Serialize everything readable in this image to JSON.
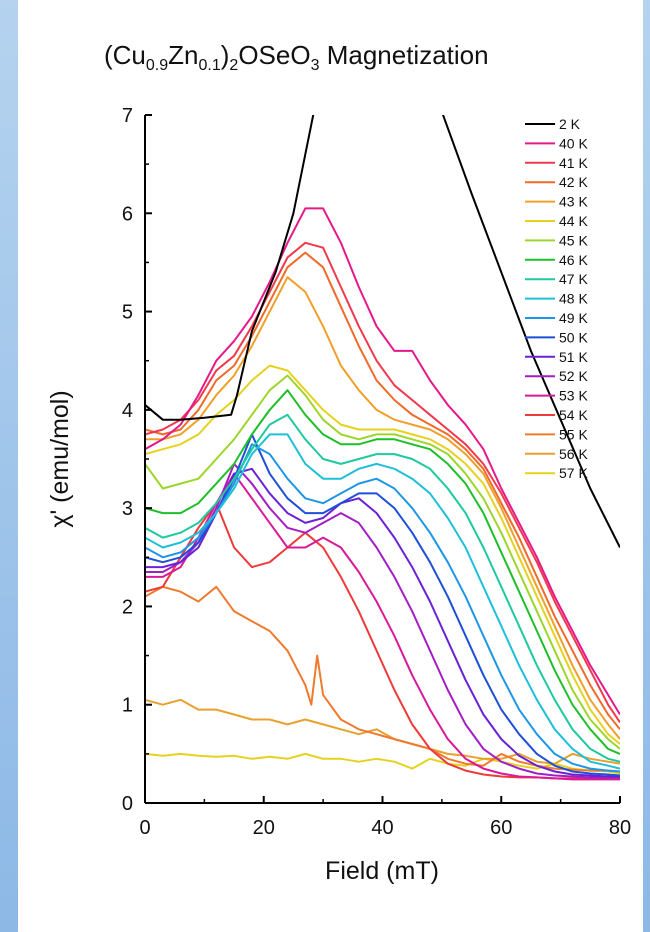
{
  "chart_data": {
    "type": "line",
    "title": {
      "base1": "(Cu",
      "sub1": "0.9",
      "base2": "Zn",
      "sub2": "0.1",
      "base3": ")",
      "sub3": "2",
      "base4": "OSeO",
      "sub4": "3",
      "base5": " Magnetization"
    },
    "xlabel": "Field (mT)",
    "ylabel": "χ' (emu/mol)",
    "xlim": [
      0,
      80
    ],
    "ylim": [
      0,
      7
    ],
    "xticks": [
      0,
      20,
      40,
      60,
      80
    ],
    "yticks": [
      0,
      1,
      2,
      3,
      4,
      5,
      6,
      7
    ],
    "grid": false,
    "legend_position": "top-right",
    "series": [
      {
        "name": "2 K",
        "color": "#000000",
        "x": [
          0,
          3,
          6,
          10,
          14.5,
          15.5,
          18,
          22,
          25,
          27,
          29,
          31
        ],
        "y": [
          4.05,
          3.9,
          3.9,
          3.92,
          3.95,
          4.15,
          4.8,
          5.4,
          6.0,
          6.6,
          7.2,
          7.8
        ]
      },
      {
        "name": "40 K",
        "color": "#e6198a",
        "x": [
          0,
          3,
          6,
          9,
          12,
          15,
          18,
          21,
          24,
          27,
          30,
          33,
          36,
          39,
          42,
          45,
          48,
          51,
          54,
          57,
          60,
          63,
          66,
          69,
          72,
          75,
          78,
          80
        ],
        "y": [
          3.6,
          3.7,
          3.85,
          4.15,
          4.5,
          4.7,
          4.95,
          5.3,
          5.7,
          6.05,
          6.05,
          5.7,
          5.25,
          4.85,
          4.6,
          4.6,
          4.3,
          4.05,
          3.85,
          3.6,
          3.2,
          2.85,
          2.5,
          2.1,
          1.75,
          1.4,
          1.1,
          0.9
        ]
      },
      {
        "name": "41 K",
        "color": "#ef3a4e",
        "x": [
          0,
          3,
          6,
          9,
          12,
          15,
          18,
          21,
          24,
          27,
          30,
          33,
          36,
          39,
          42,
          45,
          48,
          51,
          54,
          57,
          60,
          63,
          66,
          69,
          72,
          75,
          78,
          80
        ],
        "y": [
          3.75,
          3.8,
          3.9,
          4.1,
          4.4,
          4.55,
          4.85,
          5.2,
          5.55,
          5.7,
          5.65,
          5.25,
          4.85,
          4.5,
          4.25,
          4.1,
          3.95,
          3.8,
          3.65,
          3.45,
          3.15,
          2.8,
          2.45,
          2.05,
          1.7,
          1.35,
          1.0,
          0.82
        ]
      },
      {
        "name": "42 K",
        "color": "#f06a2a",
        "x": [
          0,
          3,
          6,
          9,
          12,
          15,
          18,
          21,
          24,
          27,
          30,
          33,
          36,
          39,
          42,
          45,
          48,
          51,
          54,
          57,
          60,
          63,
          66,
          69,
          72,
          75,
          78,
          80
        ],
        "y": [
          3.8,
          3.75,
          3.8,
          4.0,
          4.3,
          4.45,
          4.75,
          5.1,
          5.45,
          5.6,
          5.45,
          5.05,
          4.65,
          4.3,
          4.1,
          3.95,
          3.85,
          3.75,
          3.6,
          3.4,
          3.05,
          2.7,
          2.3,
          1.9,
          1.55,
          1.2,
          0.9,
          0.75
        ]
      },
      {
        "name": "43 K",
        "color": "#f0a02a",
        "x": [
          0,
          3,
          6,
          9,
          12,
          15,
          18,
          21,
          24,
          27,
          30,
          33,
          36,
          39,
          42,
          45,
          48,
          51,
          54,
          57,
          60,
          63,
          66,
          69,
          72,
          75,
          78,
          80
        ],
        "y": [
          3.7,
          3.7,
          3.75,
          3.9,
          4.15,
          4.35,
          4.65,
          5.0,
          5.35,
          5.2,
          4.85,
          4.45,
          4.2,
          4.0,
          3.9,
          3.85,
          3.8,
          3.7,
          3.55,
          3.35,
          3.0,
          2.6,
          2.2,
          1.8,
          1.4,
          1.05,
          0.8,
          0.65
        ]
      },
      {
        "name": "44 K",
        "color": "#e6d21e",
        "x": [
          0,
          3,
          6,
          9,
          12,
          15,
          18,
          21,
          24,
          27,
          30,
          33,
          36,
          39,
          42,
          45,
          48,
          51,
          54,
          57,
          60,
          63,
          66,
          69,
          72,
          75,
          78,
          80
        ],
        "y": [
          3.55,
          3.6,
          3.65,
          3.75,
          3.95,
          4.1,
          4.3,
          4.45,
          4.4,
          4.2,
          4.0,
          3.85,
          3.8,
          3.8,
          3.8,
          3.75,
          3.7,
          3.6,
          3.45,
          3.25,
          2.9,
          2.5,
          2.1,
          1.7,
          1.3,
          0.95,
          0.7,
          0.6
        ]
      },
      {
        "name": "45 K",
        "color": "#9dd62a",
        "x": [
          0,
          3,
          6,
          9,
          12,
          15,
          18,
          21,
          24,
          27,
          30,
          33,
          36,
          39,
          42,
          45,
          48,
          51,
          54,
          57,
          60,
          63,
          66,
          69,
          72,
          75,
          78,
          80
        ],
        "y": [
          3.45,
          3.2,
          3.25,
          3.3,
          3.5,
          3.7,
          3.95,
          4.2,
          4.35,
          4.15,
          3.9,
          3.75,
          3.7,
          3.75,
          3.75,
          3.7,
          3.65,
          3.55,
          3.35,
          3.1,
          2.75,
          2.35,
          1.95,
          1.55,
          1.15,
          0.85,
          0.65,
          0.55
        ]
      },
      {
        "name": "46 K",
        "color": "#1fbf2a",
        "x": [
          0,
          3,
          6,
          9,
          12,
          15,
          18,
          21,
          24,
          27,
          30,
          33,
          36,
          39,
          42,
          45,
          48,
          51,
          54,
          57,
          60,
          63,
          66,
          69,
          72,
          75,
          78,
          80
        ],
        "y": [
          3.0,
          2.95,
          2.95,
          3.05,
          3.25,
          3.45,
          3.75,
          4.0,
          4.2,
          3.95,
          3.75,
          3.65,
          3.65,
          3.7,
          3.7,
          3.65,
          3.6,
          3.45,
          3.25,
          2.95,
          2.55,
          2.15,
          1.75,
          1.35,
          1.0,
          0.75,
          0.55,
          0.5
        ]
      },
      {
        "name": "47 K",
        "color": "#1fc9a0",
        "x": [
          0,
          3,
          6,
          9,
          12,
          15,
          18,
          21,
          24,
          27,
          30,
          33,
          36,
          39,
          42,
          45,
          48,
          51,
          54,
          57,
          60,
          63,
          66,
          69,
          72,
          75,
          78,
          80
        ],
        "y": [
          2.8,
          2.7,
          2.75,
          2.85,
          3.05,
          3.3,
          3.6,
          3.85,
          3.95,
          3.7,
          3.5,
          3.45,
          3.5,
          3.55,
          3.55,
          3.5,
          3.4,
          3.2,
          2.95,
          2.6,
          2.2,
          1.8,
          1.4,
          1.05,
          0.75,
          0.55,
          0.45,
          0.42
        ]
      },
      {
        "name": "48 K",
        "color": "#1ec0d8",
        "x": [
          0,
          3,
          6,
          9,
          12,
          15,
          18,
          21,
          24,
          27,
          30,
          33,
          36,
          39,
          42,
          45,
          48,
          51,
          54,
          57,
          60,
          63,
          66,
          69,
          72,
          75,
          78,
          80
        ],
        "y": [
          2.7,
          2.6,
          2.65,
          2.75,
          2.95,
          3.2,
          3.55,
          3.75,
          3.75,
          3.45,
          3.3,
          3.3,
          3.4,
          3.45,
          3.4,
          3.3,
          3.15,
          2.9,
          2.6,
          2.2,
          1.8,
          1.4,
          1.05,
          0.75,
          0.55,
          0.42,
          0.38,
          0.35
        ]
      },
      {
        "name": "49 K",
        "color": "#1e96e8",
        "x": [
          0,
          3,
          6,
          9,
          12,
          15,
          18,
          21,
          24,
          27,
          30,
          33,
          36,
          39,
          42,
          45,
          48,
          51,
          54,
          57,
          60,
          63,
          66,
          69,
          72,
          75,
          78,
          80
        ],
        "y": [
          2.6,
          2.5,
          2.55,
          2.7,
          2.95,
          3.25,
          3.65,
          3.55,
          3.3,
          3.1,
          3.05,
          3.15,
          3.25,
          3.3,
          3.2,
          3.0,
          2.75,
          2.45,
          2.1,
          1.7,
          1.3,
          0.95,
          0.7,
          0.5,
          0.4,
          0.35,
          0.33,
          0.32
        ]
      },
      {
        "name": "50 K",
        "color": "#1e4fd6",
        "x": [
          0,
          3,
          6,
          9,
          12,
          15,
          18,
          21,
          24,
          27,
          30,
          33,
          36,
          39,
          42,
          45,
          48,
          51,
          54,
          57,
          60,
          63,
          66,
          69,
          72,
          75,
          78,
          80
        ],
        "y": [
          2.5,
          2.45,
          2.5,
          2.65,
          2.95,
          3.3,
          3.75,
          3.35,
          3.1,
          2.95,
          2.95,
          3.05,
          3.15,
          3.15,
          3.0,
          2.75,
          2.45,
          2.1,
          1.7,
          1.3,
          0.95,
          0.7,
          0.5,
          0.38,
          0.32,
          0.3,
          0.29,
          0.28
        ]
      },
      {
        "name": "51 K",
        "color": "#6a22d6",
        "x": [
          0,
          3,
          6,
          9,
          12,
          15,
          18,
          21,
          24,
          27,
          30,
          33,
          36,
          39,
          42,
          45,
          48,
          51,
          54,
          57,
          60,
          63,
          66,
          69,
          72,
          75,
          78,
          80
        ],
        "y": [
          2.4,
          2.4,
          2.45,
          2.6,
          2.95,
          3.35,
          3.4,
          3.15,
          2.95,
          2.85,
          2.9,
          3.05,
          3.1,
          2.95,
          2.7,
          2.4,
          2.05,
          1.65,
          1.25,
          0.9,
          0.65,
          0.48,
          0.38,
          0.32,
          0.29,
          0.28,
          0.27,
          0.27
        ]
      },
      {
        "name": "52 K",
        "color": "#a31fc4",
        "x": [
          0,
          3,
          6,
          9,
          12,
          15,
          18,
          21,
          24,
          27,
          30,
          33,
          36,
          39,
          42,
          45,
          48,
          51,
          54,
          57,
          60,
          63,
          66,
          69,
          72,
          75,
          78,
          80
        ],
        "y": [
          2.35,
          2.35,
          2.45,
          2.65,
          3.0,
          3.45,
          3.25,
          3.0,
          2.8,
          2.75,
          2.85,
          2.95,
          2.85,
          2.6,
          2.3,
          1.95,
          1.55,
          1.15,
          0.8,
          0.55,
          0.42,
          0.35,
          0.3,
          0.28,
          0.27,
          0.26,
          0.26,
          0.26
        ]
      },
      {
        "name": "53 K",
        "color": "#d81a9a",
        "x": [
          0,
          3,
          6,
          9,
          12,
          15,
          18,
          21,
          24,
          27,
          30,
          33,
          36,
          39,
          42,
          45,
          48,
          51,
          54,
          57,
          60,
          63,
          66,
          69,
          72,
          75,
          78,
          80
        ],
        "y": [
          2.3,
          2.3,
          2.4,
          2.7,
          3.05,
          3.35,
          3.1,
          2.85,
          2.6,
          2.6,
          2.7,
          2.6,
          2.35,
          2.05,
          1.7,
          1.3,
          0.95,
          0.65,
          0.45,
          0.35,
          0.3,
          0.27,
          0.26,
          0.25,
          0.24,
          0.24,
          0.24,
          0.24
        ]
      },
      {
        "name": "54 K",
        "color": "#ee3a3a",
        "x": [
          0,
          3,
          6,
          9,
          12,
          15,
          18,
          21,
          24,
          27,
          30,
          33,
          36,
          39,
          42,
          45,
          48,
          51,
          54,
          57,
          60,
          63,
          66,
          69,
          72,
          75,
          78,
          80
        ],
        "y": [
          2.15,
          2.2,
          2.5,
          2.8,
          3.05,
          2.6,
          2.4,
          2.45,
          2.6,
          2.75,
          2.6,
          2.3,
          1.95,
          1.55,
          1.15,
          0.8,
          0.55,
          0.4,
          0.33,
          0.29,
          0.27,
          0.26,
          0.26,
          0.25,
          0.25,
          0.25,
          0.25,
          0.25
        ]
      },
      {
        "name": "55 K",
        "color": "#ef7a2e",
        "x": [
          0,
          3,
          6,
          9,
          12,
          15,
          18,
          21,
          24,
          27,
          28,
          29,
          30,
          33,
          36,
          39,
          42,
          45,
          48,
          51,
          54,
          57,
          60,
          63,
          66,
          69,
          72,
          75,
          78,
          80
        ],
        "y": [
          2.1,
          2.2,
          2.15,
          2.05,
          2.2,
          1.95,
          1.85,
          1.75,
          1.55,
          1.2,
          1.0,
          1.5,
          1.1,
          0.85,
          0.75,
          0.7,
          0.65,
          0.6,
          0.55,
          0.45,
          0.4,
          0.38,
          0.5,
          0.42,
          0.38,
          0.35,
          0.34,
          0.33,
          0.33,
          0.32
        ]
      },
      {
        "name": "56 K",
        "color": "#e8a02e",
        "x": [
          0,
          3,
          6,
          9,
          12,
          15,
          18,
          21,
          24,
          27,
          30,
          33,
          36,
          39,
          42,
          45,
          48,
          51,
          54,
          57,
          60,
          63,
          66,
          69,
          72,
          75,
          78,
          80
        ],
        "y": [
          1.05,
          1.0,
          1.05,
          0.95,
          0.95,
          0.9,
          0.85,
          0.85,
          0.8,
          0.85,
          0.8,
          0.75,
          0.7,
          0.75,
          0.65,
          0.6,
          0.55,
          0.5,
          0.48,
          0.45,
          0.45,
          0.5,
          0.42,
          0.4,
          0.5,
          0.45,
          0.42,
          0.4
        ]
      },
      {
        "name": "57 K",
        "color": "#e6d21e",
        "x": [
          0,
          3,
          6,
          9,
          12,
          15,
          18,
          21,
          24,
          27,
          30,
          33,
          36,
          39,
          42,
          45,
          48,
          51,
          54,
          57,
          60,
          63,
          66,
          69,
          72,
          75,
          78,
          80
        ],
        "y": [
          0.5,
          0.48,
          0.5,
          0.48,
          0.47,
          0.48,
          0.45,
          0.47,
          0.45,
          0.5,
          0.45,
          0.45,
          0.42,
          0.45,
          0.42,
          0.35,
          0.45,
          0.4,
          0.38,
          0.45,
          0.42,
          0.38,
          0.35,
          0.4,
          0.35,
          0.33,
          0.32,
          0.3
        ]
      }
    ],
    "extra_line_2K_descending": {
      "color": "#000000",
      "x": [
        49,
        55,
        60,
        65,
        70,
        75,
        80
      ],
      "y": [
        7.2,
        6.2,
        5.4,
        4.6,
        3.9,
        3.2,
        2.6
      ]
    }
  }
}
